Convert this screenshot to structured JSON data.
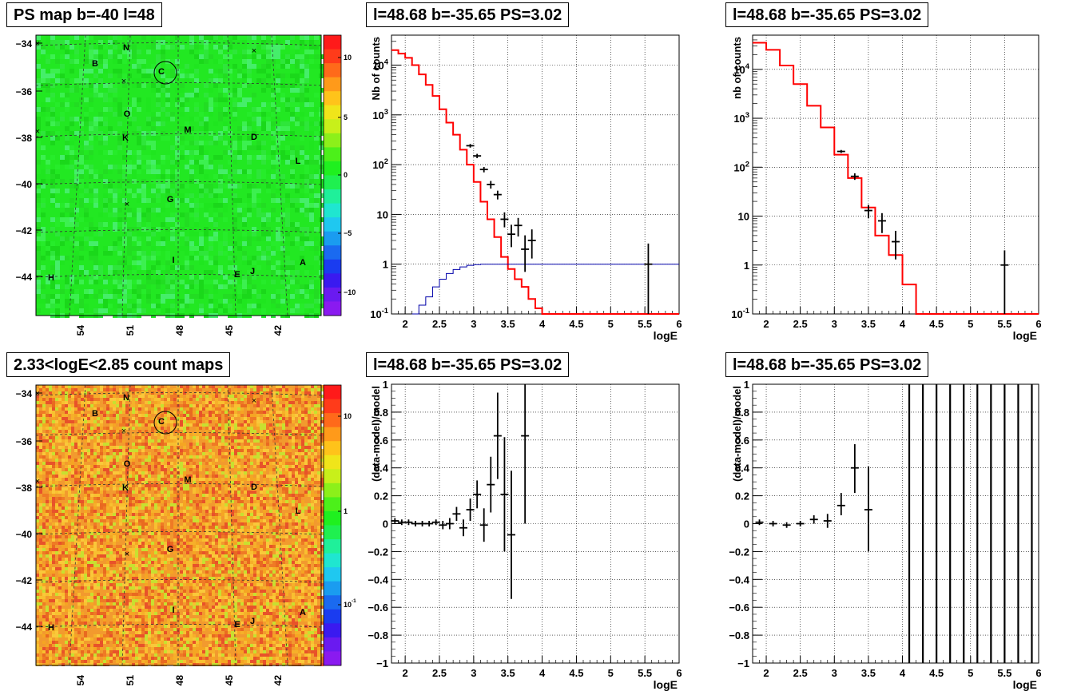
{
  "panels": {
    "map1": {
      "title": "PS map b=-40 l=48"
    },
    "map2": {
      "title": "2.33<logE<2.85 count maps"
    },
    "spec1": {
      "title": "l=48.68 b=-35.65 PS=3.02"
    },
    "spec2": {
      "title": "l=48.68 b=-35.65 PS=3.02"
    },
    "resid1": {
      "title": "l=48.68 b=-35.65 PS=3.02"
    },
    "resid2": {
      "title": "l=48.68 b=-35.65 PS=3.02"
    }
  },
  "map_axes": {
    "y_ticks": [
      "-34",
      "-36",
      "-38",
      "-40",
      "-42",
      "-44"
    ],
    "x_ticks": [
      "54",
      "51",
      "48",
      "45",
      "42"
    ],
    "source_labels": [
      "N",
      "B",
      "C",
      "O",
      "K",
      "M",
      "D",
      "L",
      "G",
      "I",
      "E",
      "J",
      "A",
      "H"
    ]
  },
  "colorbars": {
    "map1": {
      "labels": [
        "10",
        "5",
        "0",
        "-5",
        "-10"
      ]
    },
    "map2": {
      "labels": [
        "10",
        "1",
        "10^-1"
      ]
    }
  },
  "colors": {
    "model": "#ff0000",
    "aux": "#0000aa",
    "data": "#000000",
    "map1_bg": "#22e822",
    "map2_bg": "#f29a2e"
  },
  "chart_data": [
    {
      "type": "line",
      "id": "spec1",
      "xlabel": "logE",
      "ylabel": "Nb of counts",
      "xlim": [
        1.8,
        6.0
      ],
      "ylim": [
        0.1,
        40000
      ],
      "yscale": "log",
      "x_ticks": [
        "2",
        "2.5",
        "3",
        "3.5",
        "4",
        "4.5",
        "5",
        "5.5",
        "6"
      ],
      "y_ticks": [
        "10^-1",
        "1",
        "10",
        "10^2",
        "10^3",
        "10^4"
      ],
      "grid": true,
      "series": [
        {
          "kind": "model-step",
          "color": "#ff0000",
          "edges": [
            1.8,
            1.9,
            2.0,
            2.1,
            2.2,
            2.3,
            2.4,
            2.5,
            2.6,
            2.7,
            2.8,
            2.9,
            3.0,
            3.1,
            3.2,
            3.3,
            3.4,
            3.5,
            3.6,
            3.7,
            3.8,
            3.9,
            4.0,
            4.1,
            4.2,
            6.0
          ],
          "values": [
            20000,
            17000,
            14000,
            10000,
            6500,
            4000,
            2400,
            1300,
            700,
            400,
            200,
            100,
            45,
            18,
            8,
            3.5,
            1.4,
            0.8,
            0.5,
            0.35,
            0.2,
            0.13,
            0.1,
            0.1,
            0.1
          ]
        },
        {
          "kind": "aux-step",
          "color": "#0000aa",
          "edges": [
            2.1,
            2.2,
            2.3,
            2.4,
            2.5,
            2.6,
            2.7,
            2.8,
            2.9,
            3.0,
            3.1,
            3.2,
            6.0
          ],
          "values": [
            0.1,
            0.15,
            0.22,
            0.35,
            0.5,
            0.65,
            0.78,
            0.88,
            0.95,
            0.98,
            1.0,
            1.0
          ]
        },
        {
          "kind": "data-points",
          "color": "#000000",
          "x": [
            2.95,
            3.05,
            3.15,
            3.25,
            3.35,
            3.45,
            3.55,
            3.65,
            3.75,
            3.85,
            5.55
          ],
          "y": [
            240,
            150,
            80,
            40,
            25,
            8,
            4,
            6,
            2,
            3,
            1
          ],
          "ylo": [
            220,
            135,
            70,
            33,
            20,
            5.5,
            2.2,
            3.6,
            0.7,
            1.3,
            0.1
          ],
          "yhi": [
            260,
            165,
            90,
            47,
            30,
            11,
            6.2,
            8.5,
            3.8,
            5.0,
            2.6
          ]
        }
      ]
    },
    {
      "type": "line",
      "id": "spec2",
      "xlabel": "logE",
      "ylabel": "nb of counts",
      "xlim": [
        1.8,
        6.0
      ],
      "ylim": [
        0.1,
        50000
      ],
      "yscale": "log",
      "x_ticks": [
        "2",
        "2.5",
        "3",
        "3.5",
        "4",
        "4.5",
        "5",
        "5.5",
        "6"
      ],
      "y_ticks": [
        "10^-1",
        "1",
        "10",
        "10^2",
        "10^3",
        "10^4"
      ],
      "grid": true,
      "series": [
        {
          "kind": "model-step",
          "color": "#ff0000",
          "edges": [
            1.8,
            2.0,
            2.2,
            2.4,
            2.6,
            2.8,
            3.0,
            3.2,
            3.4,
            3.6,
            3.8,
            4.0,
            4.2,
            6.0
          ],
          "values": [
            35000,
            25000,
            12000,
            5000,
            1800,
            650,
            180,
            60,
            15,
            4,
            1.6,
            0.4,
            0.1
          ]
        },
        {
          "kind": "data-points",
          "color": "#000000",
          "x": [
            3.1,
            3.3,
            3.5,
            3.7,
            3.9,
            5.5
          ],
          "y": [
            210,
            65,
            13,
            8,
            3,
            1
          ],
          "ylo": [
            195,
            55,
            9,
            4.5,
            1.3,
            0.1
          ],
          "yhi": [
            225,
            75,
            17,
            11.5,
            5.0,
            2.0
          ]
        }
      ]
    },
    {
      "type": "scatter",
      "id": "resid1",
      "xlabel": "logE",
      "ylabel": "(data-model)/model",
      "xlim": [
        1.8,
        6.0
      ],
      "ylim": [
        -1,
        1
      ],
      "x_ticks": [
        "2",
        "2.5",
        "3",
        "3.5",
        "4",
        "4.5",
        "5",
        "5.5",
        "6"
      ],
      "y_ticks": [
        "-1",
        "-0.8",
        "-0.6",
        "-0.4",
        "-0.2",
        "0",
        "0.2",
        "0.4",
        "0.6",
        "0.8",
        "1"
      ],
      "grid": true,
      "series": [
        {
          "kind": "data-points",
          "color": "#000000",
          "x": [
            1.85,
            1.95,
            2.05,
            2.15,
            2.25,
            2.35,
            2.45,
            2.55,
            2.65,
            2.75,
            2.85,
            2.95,
            3.05,
            3.15,
            3.25,
            3.35,
            3.45,
            3.55,
            3.75
          ],
          "y": [
            0.02,
            0.01,
            0.01,
            0.0,
            0.0,
            0.0,
            0.01,
            -0.01,
            0.0,
            0.07,
            -0.03,
            0.1,
            0.21,
            -0.01,
            0.28,
            0.63,
            0.21,
            -0.08,
            0.63
          ],
          "ylo": [
            0.0,
            -0.01,
            -0.01,
            -0.02,
            -0.02,
            -0.02,
            -0.01,
            -0.04,
            -0.04,
            0.02,
            -0.09,
            0.02,
            0.11,
            -0.13,
            0.08,
            0.32,
            -0.2,
            -0.54,
            0.0
          ],
          "yhi": [
            0.04,
            0.03,
            0.03,
            0.02,
            0.02,
            0.02,
            0.03,
            0.02,
            0.04,
            0.12,
            0.03,
            0.18,
            0.31,
            0.11,
            0.48,
            0.94,
            0.62,
            0.38,
            1.0
          ]
        }
      ]
    },
    {
      "type": "scatter",
      "id": "resid2",
      "xlabel": "logE",
      "ylabel": "(data-model)/model",
      "xlim": [
        1.8,
        6.0
      ],
      "ylim": [
        -1,
        1
      ],
      "x_ticks": [
        "2",
        "2.5",
        "3",
        "3.5",
        "4",
        "4.5",
        "5",
        "5.5",
        "6"
      ],
      "y_ticks": [
        "-1",
        "-0.8",
        "-0.6",
        "-0.4",
        "-0.2",
        "0",
        "0.2",
        "0.4",
        "0.6",
        "0.8",
        "1"
      ],
      "grid": true,
      "series": [
        {
          "kind": "data-points",
          "color": "#000000",
          "x": [
            1.9,
            2.1,
            2.3,
            2.5,
            2.7,
            2.9,
            3.1,
            3.3,
            3.5
          ],
          "y": [
            0.01,
            0.0,
            -0.01,
            0.0,
            0.03,
            0.02,
            0.13,
            0.4,
            0.1
          ],
          "ylo": [
            -0.01,
            -0.02,
            -0.03,
            -0.02,
            0.0,
            -0.03,
            0.06,
            0.22,
            -0.2
          ],
          "yhi": [
            0.03,
            0.02,
            0.01,
            0.02,
            0.06,
            0.07,
            0.22,
            0.57,
            0.41
          ]
        },
        {
          "kind": "full-bars",
          "color": "#000000",
          "x": [
            4.1,
            4.3,
            4.5,
            4.7,
            4.9,
            5.1,
            5.3,
            5.5,
            5.7,
            5.9
          ]
        }
      ]
    }
  ]
}
